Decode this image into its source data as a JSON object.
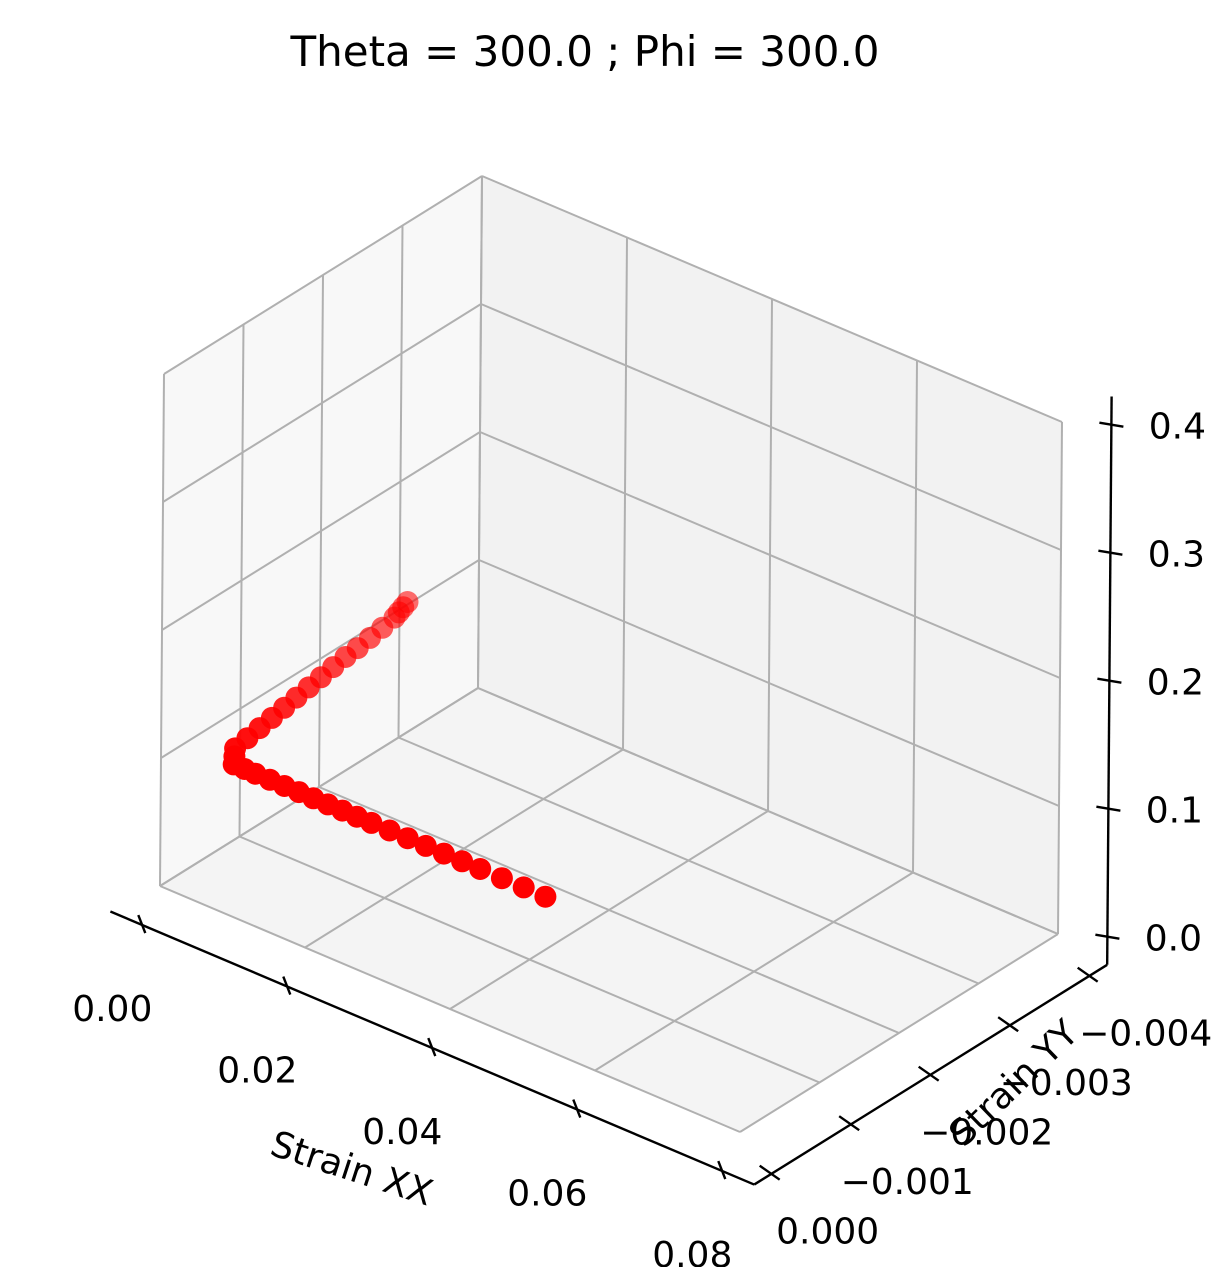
{
  "chart_data": {
    "type": "scatter",
    "projection": "3d",
    "title": "Theta = 300.0 ; Phi = 300.0",
    "xlabel": "Strain XX",
    "ylabel": "Strain YY",
    "zlabel": "",
    "xlim": [
      0.0,
      0.08
    ],
    "ylim": [
      -0.004,
      0.0
    ],
    "zlim": [
      0.0,
      0.4
    ],
    "x_ticks": [
      "0.00",
      "0.02",
      "0.04",
      "0.06",
      "0.08"
    ],
    "y_ticks": [
      "0.000",
      "−0.001",
      "−0.002",
      "−0.003",
      "−0.004"
    ],
    "z_ticks": [
      "0.0",
      "0.1",
      "0.2",
      "0.3",
      "0.4"
    ],
    "grid": true,
    "marker_color": "#ff0000",
    "pane_colors": {
      "back": "#f2f2f2",
      "side": "#f8f8f8",
      "floor": "#f4f4f4"
    },
    "series": [
      {
        "points": [
          {
            "x": 0.0,
            "y": -0.0031,
            "z": 0.102
          },
          {
            "x": 0.0005,
            "y": -0.003,
            "z": 0.103
          },
          {
            "x": 0.001,
            "y": -0.0029,
            "z": 0.104
          },
          {
            "x": 0.0015,
            "y": -0.0028,
            "z": 0.105
          },
          {
            "x": 0.002,
            "y": -0.0026,
            "z": 0.106
          },
          {
            "x": 0.0025,
            "y": -0.0024,
            "z": 0.107
          },
          {
            "x": 0.003,
            "y": -0.0022,
            "z": 0.108
          },
          {
            "x": 0.0035,
            "y": -0.002,
            "z": 0.11
          },
          {
            "x": 0.004,
            "y": -0.0018,
            "z": 0.111
          },
          {
            "x": 0.0045,
            "y": -0.0016,
            "z": 0.112
          },
          {
            "x": 0.005,
            "y": -0.0014,
            "z": 0.113
          },
          {
            "x": 0.0055,
            "y": -0.0012,
            "z": 0.114
          },
          {
            "x": 0.006,
            "y": -0.001,
            "z": 0.115
          },
          {
            "x": 0.0065,
            "y": -0.0008,
            "z": 0.116
          },
          {
            "x": 0.007,
            "y": -0.0006,
            "z": 0.117
          },
          {
            "x": 0.0075,
            "y": -0.0004,
            "z": 0.118
          },
          {
            "x": 0.008,
            "y": -0.0002,
            "z": 0.119
          },
          {
            "x": 0.009,
            "y": -0.0001,
            "z": 0.119
          },
          {
            "x": 0.01,
            "y": 0.0,
            "z": 0.119
          },
          {
            "x": 0.0115,
            "y": 0.0,
            "z": 0.119
          },
          {
            "x": 0.013,
            "y": 0.0,
            "z": 0.119
          },
          {
            "x": 0.015,
            "y": 0.0,
            "z": 0.119
          },
          {
            "x": 0.017,
            "y": 0.0,
            "z": 0.119
          },
          {
            "x": 0.019,
            "y": 0.0,
            "z": 0.119
          },
          {
            "x": 0.021,
            "y": 0.0,
            "z": 0.119
          },
          {
            "x": 0.023,
            "y": 0.0,
            "z": 0.119
          },
          {
            "x": 0.025,
            "y": 0.0,
            "z": 0.119
          },
          {
            "x": 0.027,
            "y": 0.0,
            "z": 0.119
          },
          {
            "x": 0.029,
            "y": 0.0,
            "z": 0.119
          },
          {
            "x": 0.0315,
            "y": 0.0,
            "z": 0.119
          },
          {
            "x": 0.034,
            "y": 0.0,
            "z": 0.119
          },
          {
            "x": 0.0365,
            "y": 0.0,
            "z": 0.119
          },
          {
            "x": 0.039,
            "y": 0.0,
            "z": 0.119
          },
          {
            "x": 0.0415,
            "y": 0.0,
            "z": 0.119
          },
          {
            "x": 0.044,
            "y": 0.0,
            "z": 0.119
          },
          {
            "x": 0.047,
            "y": 0.0,
            "z": 0.119
          },
          {
            "x": 0.05,
            "y": 0.0,
            "z": 0.119
          },
          {
            "x": 0.053,
            "y": 0.0,
            "z": 0.119
          }
        ]
      }
    ]
  }
}
